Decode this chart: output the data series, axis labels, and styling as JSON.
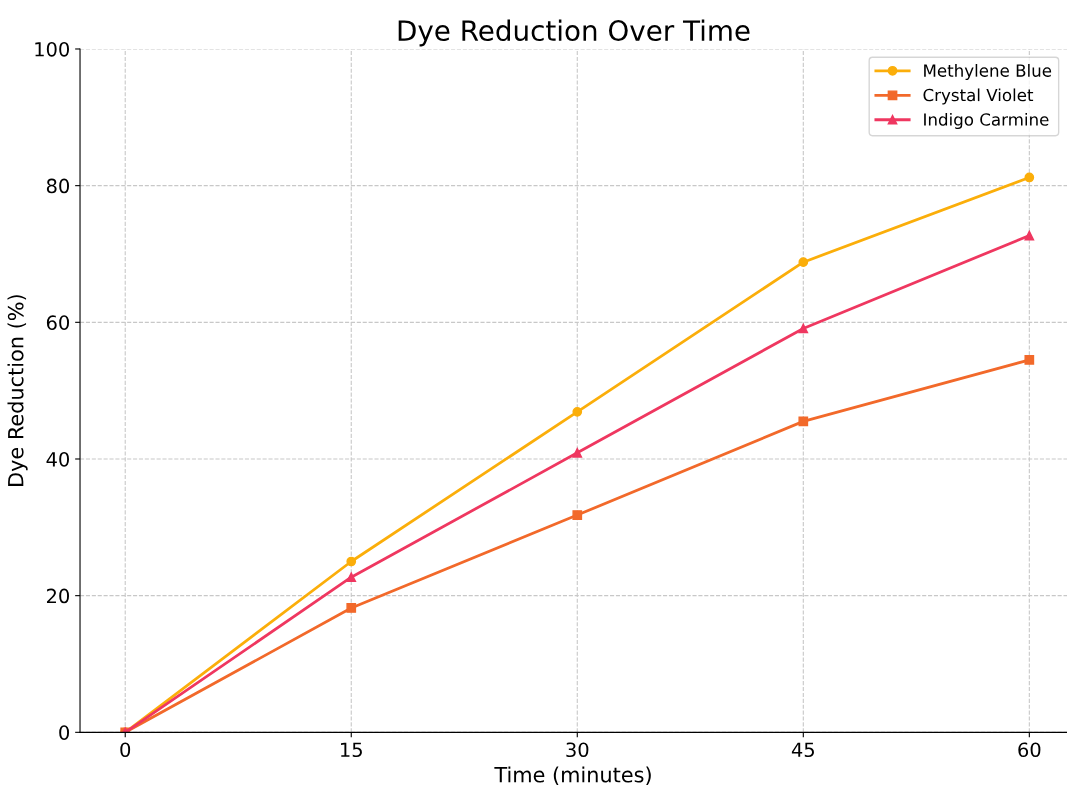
{
  "chart_data": {
    "type": "line",
    "title": "Dye Reduction Over Time",
    "xlabel": "Time (minutes)",
    "ylabel": "Dye Reduction (%)",
    "x": [
      0,
      15,
      30,
      45,
      60
    ],
    "series": [
      {
        "name": "Methylene Blue",
        "color": "#fbae0a",
        "marker": "circle",
        "values": [
          0,
          25,
          46.9,
          68.8,
          81.2
        ]
      },
      {
        "name": "Crystal Violet",
        "color": "#f2692a",
        "marker": "square",
        "values": [
          0,
          18.2,
          31.8,
          45.5,
          54.5
        ]
      },
      {
        "name": "Indigo Carmine",
        "color": "#ef3760",
        "marker": "triangle",
        "values": [
          0,
          22.7,
          40.9,
          59.1,
          72.7
        ]
      }
    ],
    "xlim": [
      -3,
      62.5
    ],
    "ylim": [
      0,
      100
    ],
    "xticks": [
      0,
      15,
      30,
      45,
      60
    ],
    "yticks": [
      0,
      20,
      40,
      60,
      80,
      100
    ],
    "grid": true,
    "legend": "top right",
    "line_style": "solid"
  }
}
